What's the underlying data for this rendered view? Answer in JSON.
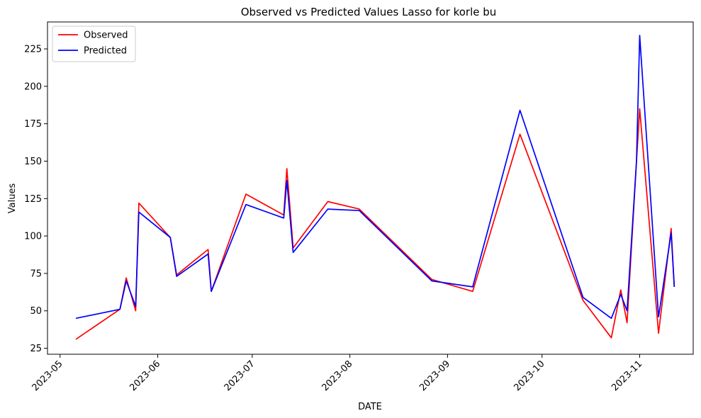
{
  "chart_data": {
    "type": "line",
    "title": "Observed vs Predicted Values Lasso for korle bu",
    "xlabel": "DATE",
    "ylabel": "Values",
    "x_tick_labels": [
      "2023-05",
      "2023-06",
      "2023-07",
      "2023-08",
      "2023-09",
      "2023-10",
      "2023-11"
    ],
    "y_ticks": [
      25,
      50,
      75,
      100,
      125,
      150,
      175,
      200,
      225
    ],
    "ylim": [
      21,
      243
    ],
    "xlim": [
      "2023-04-27",
      "2023-11-18"
    ],
    "legend_position": "top-left",
    "grid": false,
    "x": [
      "2023-05-06",
      "2023-05-20",
      "2023-05-22",
      "2023-05-25",
      "2023-05-26",
      "2023-06-05",
      "2023-06-07",
      "2023-06-17",
      "2023-06-18",
      "2023-06-29",
      "2023-07-11",
      "2023-07-12",
      "2023-07-14",
      "2023-07-25",
      "2023-08-04",
      "2023-08-27",
      "2023-09-09",
      "2023-09-24",
      "2023-10-14",
      "2023-10-23",
      "2023-10-26",
      "2023-10-28",
      "2023-10-31",
      "2023-11-01",
      "2023-11-07",
      "2023-11-11",
      "2023-11-12"
    ],
    "series": [
      {
        "name": "Observed",
        "color": "#ff0000",
        "values": [
          31,
          51,
          72,
          50,
          122,
          99,
          74,
          91,
          63,
          128,
          114,
          145,
          92,
          123,
          118,
          71,
          63,
          168,
          57,
          32,
          64,
          42,
          150,
          185,
          35,
          105,
          66
        ]
      },
      {
        "name": "Predicted",
        "color": "#0000ff",
        "values": [
          45,
          51,
          70,
          53,
          116,
          99,
          73,
          88,
          63,
          121,
          112,
          137,
          89,
          118,
          117,
          70,
          66,
          184,
          59,
          45,
          61,
          50,
          150,
          234,
          46,
          102,
          66
        ]
      }
    ]
  }
}
